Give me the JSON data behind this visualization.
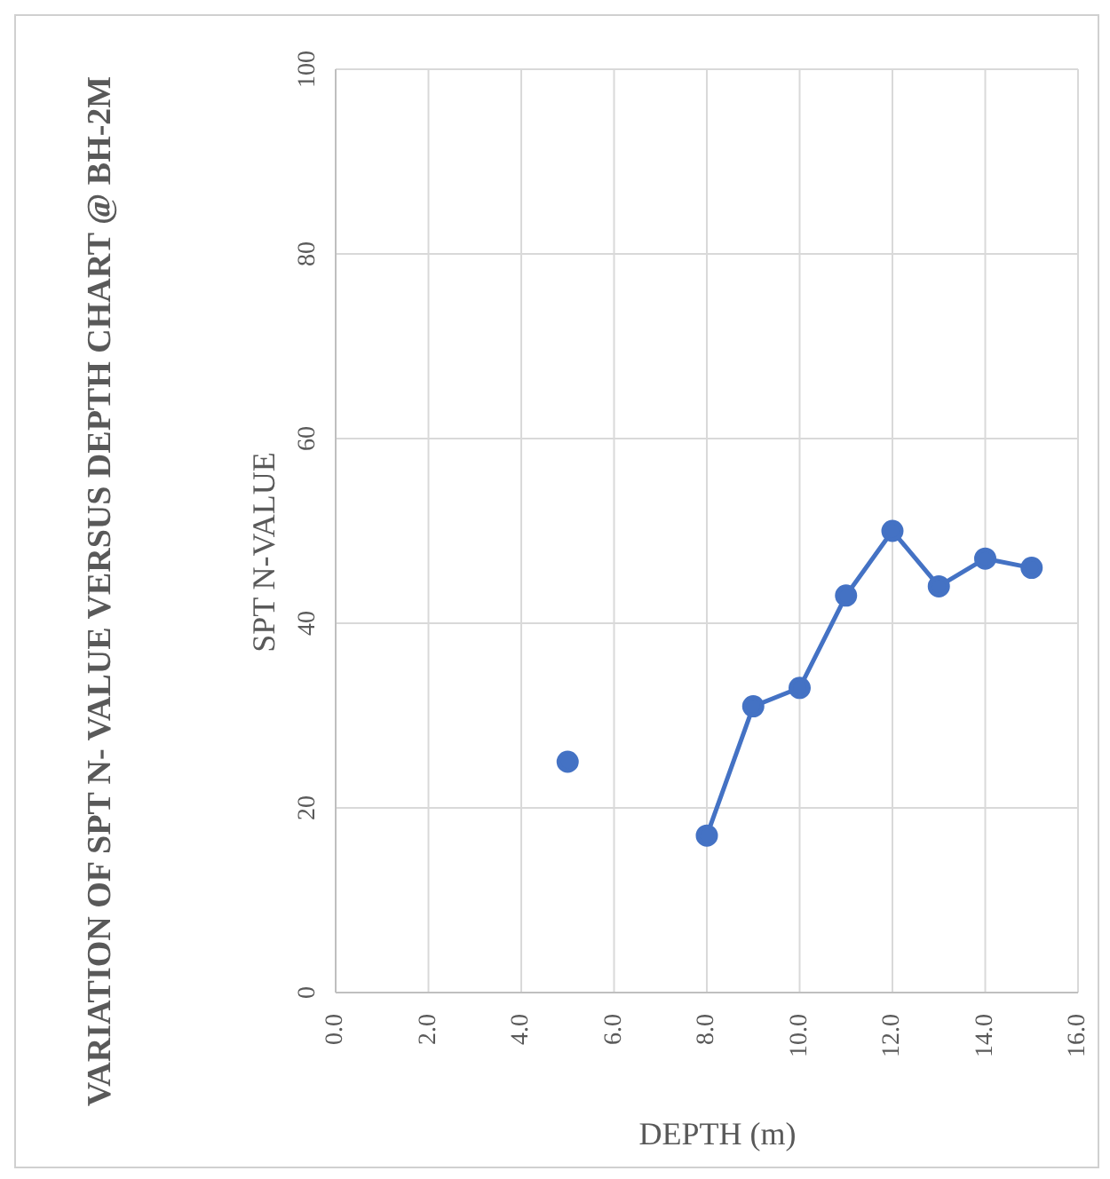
{
  "chart_data": {
    "type": "line",
    "title": "VARIATION OF SPT N- VALUE VERSUS DEPTH CHART @ BH-2M",
    "xlabel": "DEPTH (m)",
    "ylabel": "SPT N-VALUE",
    "x": [
      5,
      6,
      8,
      9,
      10,
      11,
      12,
      13,
      14,
      15
    ],
    "series": [
      {
        "color": "#4472c4",
        "values": [
          25,
          null,
          17,
          31,
          33,
          43,
          50,
          44,
          47,
          46
        ]
      }
    ],
    "xlim": [
      0,
      16
    ],
    "xticks": [
      {
        "value": 0,
        "label": "0.0"
      },
      {
        "value": 2,
        "label": "2.0"
      },
      {
        "value": 4,
        "label": "4.0"
      },
      {
        "value": 6,
        "label": "6.0"
      },
      {
        "value": 8,
        "label": "8.0"
      },
      {
        "value": 10,
        "label": "10.0"
      },
      {
        "value": 12,
        "label": "12.0"
      },
      {
        "value": 14,
        "label": "14.0"
      },
      {
        "value": 16,
        "label": "16.0"
      }
    ],
    "ylim": [
      0,
      100
    ],
    "yticks": [
      0,
      20,
      40,
      60,
      80,
      100
    ],
    "grid": true,
    "marker": "circle",
    "line_style": "solid"
  }
}
